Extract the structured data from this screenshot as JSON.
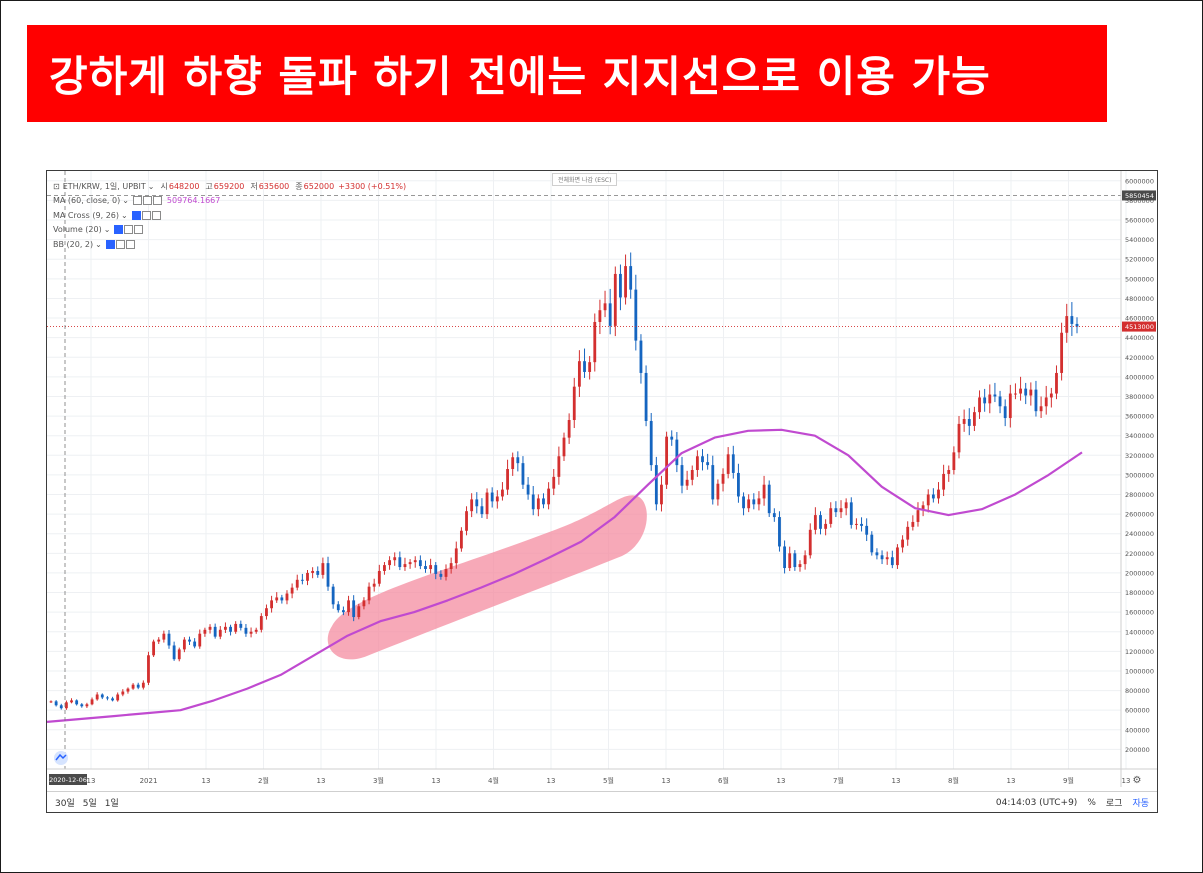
{
  "banner": {
    "text": "강하게 하향 돌파 하기 전에는 지지선으로 이용 가능"
  },
  "legend": {
    "symbol": "ETH/KRW, 1일, UPBIT",
    "open_label": "시",
    "open": "648200",
    "high_label": "고",
    "high": "659200",
    "low_label": "저",
    "low": "635600",
    "close_label": "종",
    "close": "652000",
    "change": "+3300 (+0.51%)",
    "indicators": [
      {
        "name": "MA (60, close, 0)",
        "value": "509764.1667"
      },
      {
        "name": "MA Cross (9, 26)",
        "value": ""
      },
      {
        "name": "Volume (20)",
        "value": ""
      },
      {
        "name": "BB (20, 2)",
        "value": ""
      }
    ]
  },
  "toolbar": {
    "esc_hint": "전체화면 나감 (ESC)"
  },
  "price_axis": {
    "ticks": [
      "200000",
      "400000",
      "600000",
      "800000",
      "1000000",
      "1200000",
      "1400000",
      "1600000",
      "1800000",
      "2000000",
      "2200000",
      "2400000",
      "2600000",
      "2800000",
      "3000000",
      "3200000",
      "3400000",
      "3600000",
      "3800000",
      "4000000",
      "4200000",
      "4400000",
      "4600000",
      "4800000",
      "5000000",
      "5200000",
      "5400000",
      "5600000",
      "5800000",
      "6000000"
    ],
    "last_price_label": "4513000",
    "crosshair_label": "5850454"
  },
  "time_axis": {
    "ticks": [
      "13",
      "2021",
      "13",
      "2월",
      "13",
      "3월",
      "13",
      "4월",
      "13",
      "5월",
      "13",
      "6월",
      "13",
      "7월",
      "13",
      "8월",
      "13",
      "9월",
      "13"
    ],
    "crosshair_date": "2020-12-06"
  },
  "bottom_bar": {
    "ranges": [
      "30일",
      "5일",
      "1일"
    ],
    "clock": "04:14:03 (UTC+9)",
    "percent": "%",
    "log": "로그",
    "auto": "자동"
  },
  "colors": {
    "banner": "#ff0000",
    "up": "#d32f2f",
    "down": "#1565c0",
    "ma": "#c04ad0",
    "highlight": "#f48ca0",
    "auto": "#2962ff"
  },
  "chart_data": {
    "type": "candlestick",
    "symbol": "ETH/KRW",
    "interval": "1일",
    "exchange": "UPBIT",
    "ylim": [
      0,
      6100000
    ],
    "last_price": 4513000,
    "candles_close": [
      690000,
      650000,
      620000,
      680000,
      700000,
      660000,
      640000,
      660000,
      710000,
      760000,
      730000,
      720000,
      700000,
      760000,
      790000,
      820000,
      860000,
      830000,
      880000,
      1160000,
      1300000,
      1320000,
      1380000,
      1260000,
      1120000,
      1220000,
      1320000,
      1300000,
      1250000,
      1380000,
      1420000,
      1450000,
      1350000,
      1420000,
      1450000,
      1400000,
      1480000,
      1440000,
      1380000,
      1400000,
      1420000,
      1560000,
      1640000,
      1720000,
      1750000,
      1720000,
      1790000,
      1850000,
      1930000,
      1920000,
      2000000,
      2020000,
      1980000,
      2100000,
      1860000,
      1680000,
      1620000,
      1600000,
      1720000,
      1550000,
      1660000,
      1720000,
      1860000,
      1890000,
      2020000,
      2080000,
      2130000,
      2160000,
      2060000,
      2090000,
      2110000,
      2130000,
      2070000,
      2040000,
      2080000,
      1990000,
      1960000,
      2040000,
      2100000,
      2250000,
      2430000,
      2630000,
      2750000,
      2680000,
      2600000,
      2820000,
      2730000,
      2780000,
      2850000,
      3060000,
      3180000,
      3120000,
      2900000,
      2800000,
      2650000,
      2760000,
      2700000,
      2860000,
      2980000,
      3190000,
      3380000,
      3560000,
      3900000,
      4160000,
      4050000,
      4150000,
      4560000,
      4680000,
      4750000,
      4520000,
      5050000,
      4810000,
      5130000,
      4890000,
      4370000,
      4040000,
      3550000,
      3100000,
      2700000,
      2900000,
      3390000,
      3360000,
      3100000,
      2890000,
      2950000,
      3050000,
      3190000,
      3130000,
      3100000,
      2750000,
      2910000,
      3010000,
      3210000,
      3020000,
      2780000,
      2660000,
      2750000,
      2700000,
      2760000,
      2900000,
      2610000,
      2570000,
      2270000,
      2050000,
      2200000,
      2060000,
      2090000,
      2180000,
      2440000,
      2590000,
      2450000,
      2500000,
      2660000,
      2620000,
      2660000,
      2720000,
      2490000,
      2500000,
      2480000,
      2390000,
      2210000,
      2180000,
      2140000,
      2160000,
      2080000,
      2260000,
      2340000,
      2470000,
      2520000,
      2640000,
      2690000,
      2800000,
      2760000,
      2850000,
      3010000,
      3050000,
      3230000,
      3520000,
      3570000,
      3500000,
      3640000,
      3790000,
      3730000,
      3820000,
      3800000,
      3700000,
      3580000,
      3830000,
      3830000,
      3880000,
      3810000,
      3870000,
      3650000,
      3700000,
      3790000,
      3830000,
      4040000,
      4450000,
      4620000,
      4540000,
      4513000
    ],
    "ma_series": {
      "name": "MA (60, close, 0)",
      "values_sampled": [
        480000,
        510000,
        540000,
        570000,
        600000,
        700000,
        820000,
        960000,
        1160000,
        1360000,
        1510000,
        1600000,
        1720000,
        1850000,
        1990000,
        2150000,
        2320000,
        2570000,
        2900000,
        3220000,
        3380000,
        3450000,
        3460000,
        3400000,
        3200000,
        2880000,
        2660000,
        2590000,
        2650000,
        2800000,
        3000000,
        3230000
      ],
      "last_value": 509764.1667
    }
  }
}
